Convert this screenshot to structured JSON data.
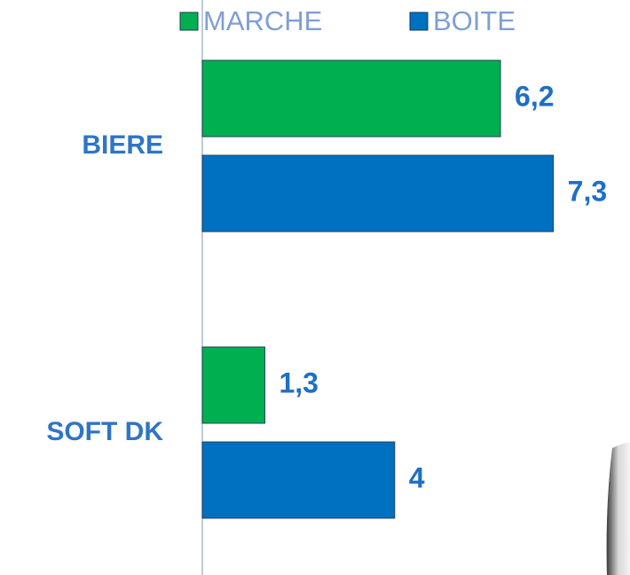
{
  "chart_data": {
    "type": "bar",
    "orientation": "horizontal",
    "categories": [
      "BIERE",
      "SOFT DK"
    ],
    "series": [
      {
        "name": "MARCHE",
        "color": "#00b050",
        "values": [
          6.2,
          1.3
        ],
        "value_labels": [
          "6,2",
          "1,3"
        ]
      },
      {
        "name": "BOITE",
        "color": "#0070c0",
        "values": [
          7.3,
          4
        ],
        "value_labels": [
          "7,3",
          "4"
        ]
      }
    ]
  }
}
